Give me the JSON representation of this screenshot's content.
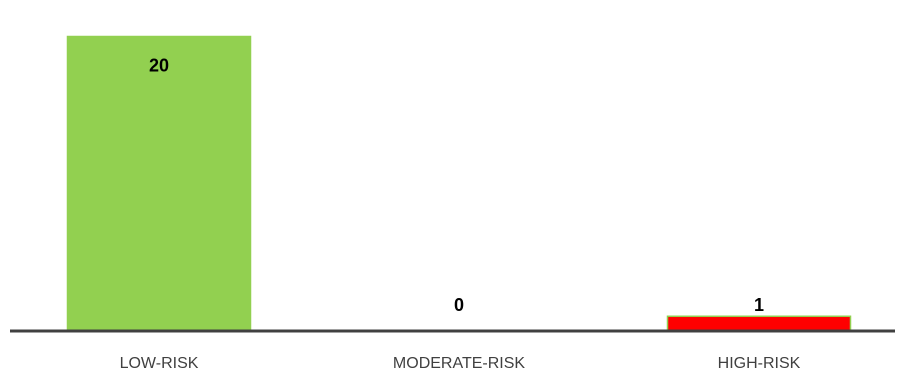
{
  "chart_data": {
    "type": "bar",
    "categories": [
      "LOW-RISK",
      "MODERATE-RISK",
      "HIGH-RISK"
    ],
    "values": [
      20,
      0,
      1
    ],
    "data_labels": [
      "20",
      "0",
      "1"
    ],
    "colors": [
      "#92d050",
      "#92d050",
      "#ff0000"
    ],
    "edge_colors": [
      "#92d050",
      "#92d050",
      "#92d050"
    ],
    "axis_color": "#404040",
    "ylim": [
      0,
      21.8
    ],
    "grid": false,
    "legend": "none"
  }
}
